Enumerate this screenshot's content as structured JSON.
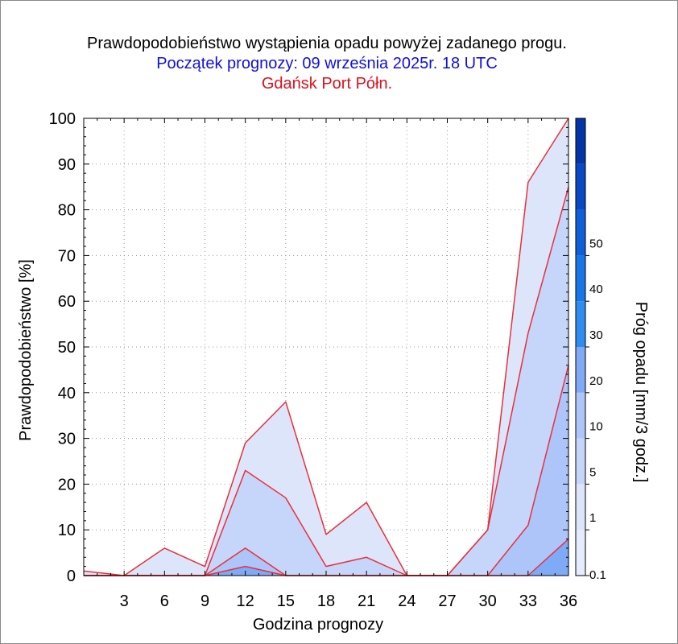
{
  "titles": {
    "line1": "Prawdopodobieństwo wystąpienia opadu powyżej zadanego progu.",
    "line2": "Początek prognozy: 09 września 2025r. 18 UTC",
    "line3": "Gdańsk Port Półn."
  },
  "colors": {
    "title1": "#000000",
    "title2": "#1010e0",
    "title3": "#e0101e",
    "series_line": "#e8303a",
    "fill_0_1": "#dde5fb",
    "fill_1": "#c6d6fb",
    "fill_5": "#aec5fa",
    "fill_10": "#7faaf7"
  },
  "chart_data": {
    "type": "area",
    "title": "Prawdopodobieństwo wystąpienia opadu powyżej zadanego progu.",
    "xlabel": "Godzina prognozy",
    "ylabel": "Prawdopodobieństwo [%]",
    "x": [
      0,
      3,
      6,
      9,
      12,
      15,
      18,
      21,
      24,
      27,
      30,
      33,
      36
    ],
    "x_tick_labels": [
      "3",
      "6",
      "9",
      "12",
      "15",
      "18",
      "21",
      "24",
      "27",
      "30",
      "33",
      "36"
    ],
    "y_tick_labels": [
      "0",
      "10",
      "20",
      "30",
      "40",
      "50",
      "60",
      "70",
      "80",
      "90",
      "100"
    ],
    "xlim": [
      0,
      36
    ],
    "ylim": [
      0,
      100
    ],
    "grid": true,
    "series": [
      {
        "threshold": "0.1",
        "color": "#dde5fb",
        "values": [
          1,
          0,
          6,
          2,
          29,
          38,
          9,
          16,
          0,
          0,
          10,
          86,
          100
        ]
      },
      {
        "threshold": "1",
        "color": "#c6d6fb",
        "values": [
          0,
          0,
          0,
          0,
          23,
          17,
          2,
          4,
          0,
          0,
          10,
          53,
          85
        ]
      },
      {
        "threshold": "5",
        "color": "#aec5fa",
        "values": [
          0,
          0,
          0,
          0,
          6,
          0,
          0,
          0,
          0,
          0,
          0,
          11,
          46
        ]
      },
      {
        "threshold": "10",
        "color": "#7faaf7",
        "values": [
          0,
          0,
          0,
          0,
          2,
          0,
          0,
          0,
          0,
          0,
          0,
          0,
          8
        ]
      }
    ],
    "colorbar": {
      "label": "Próg opadu [mm/3 godz.]",
      "tick_labels": [
        "0.1",
        "1",
        "5",
        "10",
        "20",
        "30",
        "40",
        "50"
      ],
      "bands": [
        "#e6ecfd",
        "#dde5fb",
        "#c6d6fb",
        "#aec5fa",
        "#7faaf7",
        "#2f8df2",
        "#1877e8",
        "#0e60d8",
        "#0848c4",
        "#0435a8"
      ]
    }
  }
}
